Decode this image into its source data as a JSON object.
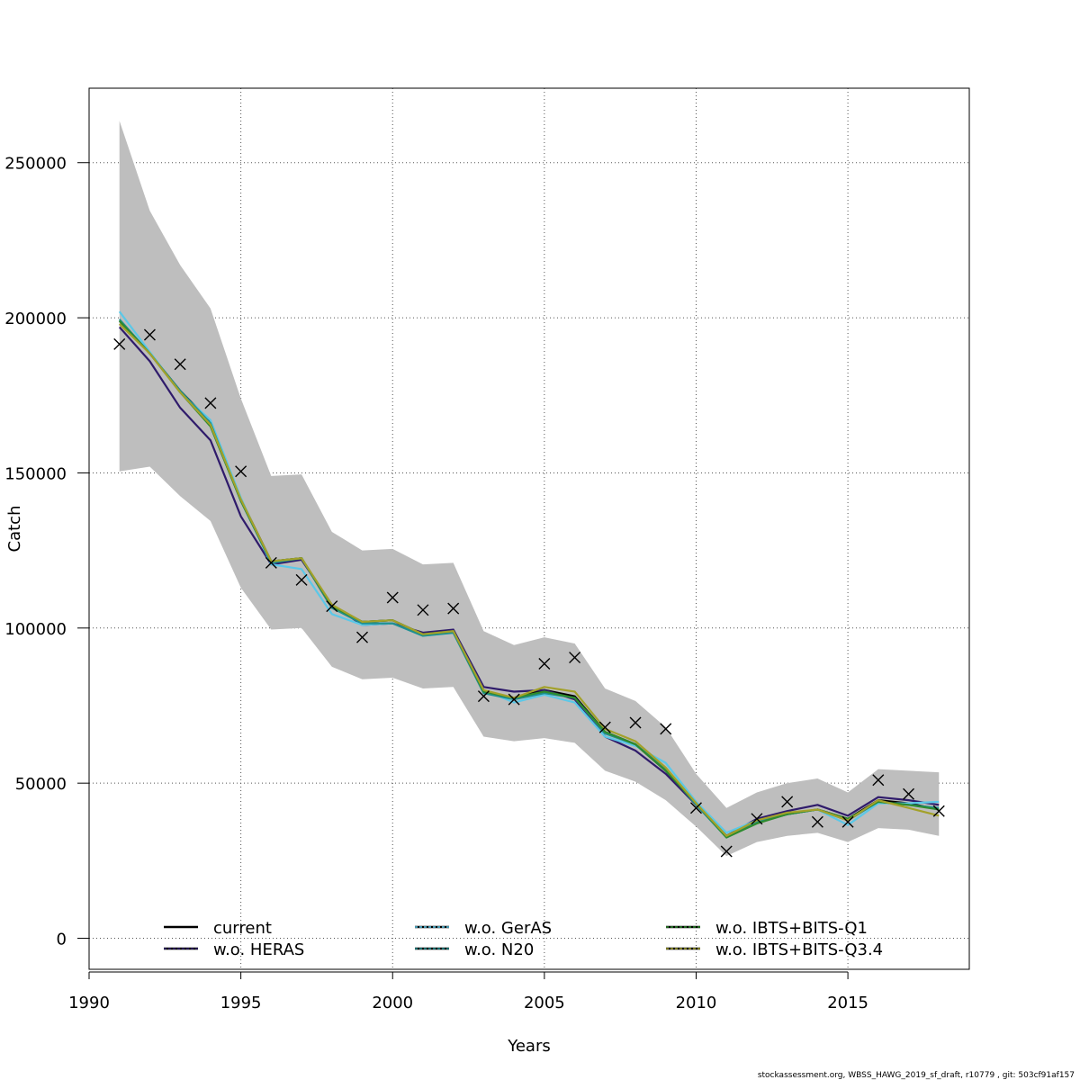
{
  "chart_data": {
    "type": "line",
    "xlabel": "Years",
    "ylabel": "Catch",
    "xlim": [
      1990,
      2019
    ],
    "ylim": [
      -10000,
      274000
    ],
    "xticks": [
      1990,
      1995,
      2000,
      2005,
      2010,
      2015
    ],
    "yticks": [
      0,
      50000,
      100000,
      150000,
      200000,
      250000
    ],
    "xtick_labels": [
      "1990",
      "1995",
      "2000",
      "2005",
      "2010",
      "2015"
    ],
    "ytick_labels": [
      "0",
      "50000",
      "100000",
      "150000",
      "200000",
      "250000"
    ],
    "grid": true,
    "legend_position": "bottom",
    "x": [
      1991,
      1992,
      1993,
      1994,
      1995,
      1996,
      1997,
      1998,
      1999,
      2000,
      2001,
      2002,
      2003,
      2004,
      2005,
      2006,
      2007,
      2008,
      2009,
      2010,
      2011,
      2012,
      2013,
      2014,
      2015,
      2016,
      2017,
      2018
    ],
    "band": {
      "lower": [
        150500,
        152000,
        142500,
        134500,
        113000,
        99500,
        100000,
        87500,
        83500,
        84000,
        80500,
        81000,
        65000,
        63500,
        64500,
        63000,
        54000,
        50500,
        44500,
        36000,
        26500,
        31000,
        33000,
        34000,
        31000,
        35500,
        35000,
        33000
      ],
      "upper": [
        263500,
        234500,
        217000,
        203000,
        174000,
        149000,
        149500,
        131000,
        125000,
        125500,
        120500,
        121000,
        99000,
        94500,
        97000,
        95000,
        80500,
        76500,
        68000,
        53000,
        42000,
        47000,
        50000,
        51500,
        47000,
        54500,
        54000,
        53500
      ],
      "color": "#bebebe"
    },
    "series": [
      {
        "name": "current",
        "color": "#000000",
        "values": [
          199000,
          188500,
          176500,
          166500,
          141500,
          121500,
          122500,
          106500,
          102000,
          102500,
          98000,
          99000,
          79500,
          77500,
          80000,
          78000,
          66500,
          62500,
          54000,
          43500,
          33000,
          37500,
          40000,
          41500,
          38500,
          44500,
          43500,
          41500
        ]
      },
      {
        "name": "w.o. HERAS",
        "color": "#2f1b6b",
        "values": [
          197000,
          186000,
          171000,
          160500,
          136000,
          120500,
          122000,
          107500,
          101000,
          101500,
          98500,
          99500,
          81000,
          79500,
          80000,
          77000,
          65000,
          60500,
          53000,
          43000,
          33000,
          38500,
          41000,
          43000,
          39500,
          45500,
          44500,
          43000
        ]
      },
      {
        "name": "w.o. GerAS",
        "color": "#5bc8e8",
        "values": [
          202000,
          189000,
          176000,
          167000,
          142000,
          120500,
          119000,
          104500,
          101000,
          101500,
          97500,
          98500,
          80000,
          76000,
          78500,
          76000,
          65000,
          62000,
          56500,
          44000,
          34000,
          38000,
          40000,
          41500,
          36500,
          43500,
          43500,
          44000
        ]
      },
      {
        "name": "w.o. N20",
        "color": "#1f8f8f",
        "values": [
          199500,
          188500,
          176500,
          166000,
          141000,
          121000,
          122500,
          106500,
          101500,
          101500,
          97500,
          98500,
          79000,
          77000,
          79000,
          77500,
          66000,
          62500,
          54500,
          43000,
          32500,
          37500,
          40000,
          41500,
          38000,
          44000,
          43000,
          42000
        ]
      },
      {
        "name": "w.o. IBTS+BITS-Q1",
        "color": "#2e8b2e",
        "values": [
          199000,
          188500,
          176000,
          165000,
          141000,
          121500,
          122500,
          107000,
          102000,
          102500,
          98000,
          99000,
          79500,
          77500,
          79500,
          77500,
          66500,
          62500,
          54000,
          43500,
          32500,
          37000,
          40000,
          41500,
          38500,
          44000,
          43000,
          41500
        ]
      },
      {
        "name": "w.o. IBTS+BITS-Q3.4",
        "color": "#a3a12a",
        "values": [
          198000,
          188500,
          176000,
          165500,
          141500,
          121500,
          122500,
          107500,
          102000,
          102500,
          98000,
          99000,
          80000,
          77500,
          81000,
          79500,
          67500,
          63500,
          55000,
          43500,
          33000,
          38000,
          40500,
          41500,
          38000,
          44500,
          42000,
          39500
        ]
      }
    ],
    "observed": {
      "marker": "x",
      "values": [
        191500,
        194500,
        185000,
        172500,
        150500,
        121000,
        115500,
        107000,
        97000,
        109800,
        105800,
        106300,
        78000,
        77000,
        88500,
        90500,
        68000,
        69500,
        67500,
        42000,
        28000,
        38500,
        44000,
        37500,
        37500,
        51000,
        46500,
        41000
      ]
    }
  },
  "footer": {
    "text": "stockassessment.org, WBSS_HAWG_2019_sf_draft, r10779 , git: 503cf91af157"
  }
}
